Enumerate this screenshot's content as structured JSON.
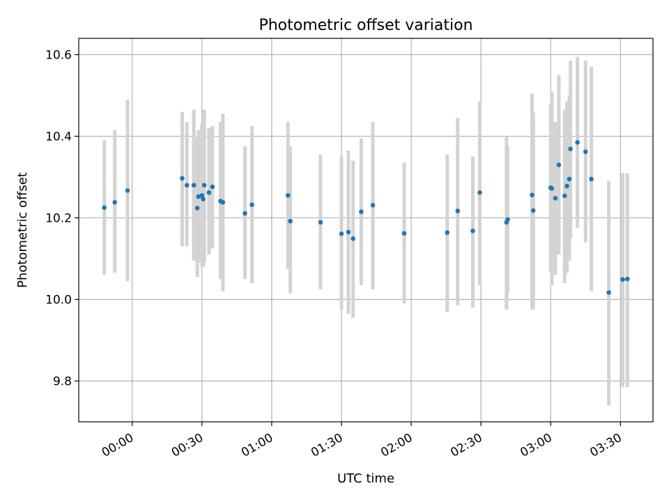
{
  "chart_data": {
    "type": "scatter",
    "title": "Photometric offset variation",
    "xlabel": "UTC time",
    "ylabel": "Photometric offset",
    "x_unit": "minutes",
    "xlim": [
      -23,
      224
    ],
    "ylim": [
      9.7,
      10.64
    ],
    "grid": true,
    "x_ticks": [
      0,
      30,
      60,
      90,
      120,
      150,
      180,
      210
    ],
    "x_tick_labels": [
      "00:00",
      "00:30",
      "01:00",
      "01:30",
      "02:00",
      "02:30",
      "03:00",
      "03:30"
    ],
    "y_ticks": [
      9.8,
      10.0,
      10.2,
      10.4,
      10.6
    ],
    "y_tick_labels": [
      "9.8",
      "10.0",
      "10.2",
      "10.4",
      "10.6"
    ],
    "colors": {
      "point": "#1f77b4",
      "errorbar": "#d3d3d3",
      "grid": "#b0b0b0"
    },
    "series": [
      {
        "x": [
          -12,
          -7.5,
          -2,
          21.5,
          23.5,
          26.5,
          28,
          28.5,
          30,
          30.5,
          31,
          33,
          34.5,
          38,
          39,
          48.5,
          51.5,
          67,
          68,
          81,
          90,
          93,
          95,
          98.5,
          103.5,
          117,
          135.5,
          140,
          146.5,
          149.5,
          161,
          161.5,
          172,
          172.5,
          180,
          180.5,
          182,
          183.5,
          186,
          187,
          188,
          188.5,
          191.5,
          195,
          197.5,
          205,
          211,
          213
        ],
        "y": [
          10.225,
          10.238,
          10.267,
          10.297,
          10.28,
          10.28,
          10.224,
          10.252,
          10.255,
          10.246,
          10.28,
          10.262,
          10.276,
          10.241,
          10.238,
          10.211,
          10.232,
          10.255,
          10.192,
          10.189,
          10.161,
          10.165,
          10.149,
          10.215,
          10.231,
          10.162,
          10.164,
          10.217,
          10.168,
          10.262,
          10.189,
          10.196,
          10.256,
          10.218,
          10.274,
          10.272,
          10.248,
          10.33,
          10.254,
          10.278,
          10.295,
          10.369,
          10.385,
          10.362,
          10.295,
          10.017,
          10.049,
          10.05
        ],
        "y_low": [
          10.06,
          10.065,
          10.045,
          10.13,
          10.13,
          10.095,
          10.055,
          10.09,
          10.08,
          10.08,
          10.09,
          10.11,
          10.125,
          10.05,
          10.02,
          10.05,
          10.04,
          10.075,
          10.015,
          10.025,
          9.975,
          9.965,
          9.955,
          10.035,
          10.025,
          9.99,
          9.97,
          9.985,
          9.98,
          10.035,
          9.975,
          10.015,
          9.975,
          9.975,
          10.065,
          10.035,
          10.06,
          10.11,
          10.04,
          10.065,
          10.095,
          10.15,
          10.175,
          10.14,
          10.02,
          9.74,
          9.785,
          9.785
        ],
        "y_high": [
          10.39,
          10.415,
          10.49,
          10.46,
          10.435,
          10.465,
          10.395,
          10.415,
          10.43,
          10.41,
          10.465,
          10.42,
          10.425,
          10.435,
          10.455,
          10.375,
          10.425,
          10.435,
          10.375,
          10.355,
          10.35,
          10.365,
          10.34,
          10.395,
          10.435,
          10.335,
          10.355,
          10.445,
          10.35,
          10.485,
          10.4,
          10.375,
          10.505,
          10.46,
          10.48,
          10.51,
          10.435,
          10.55,
          10.465,
          10.485,
          10.5,
          10.585,
          10.595,
          10.585,
          10.57,
          10.29,
          10.31,
          10.31
        ]
      }
    ]
  }
}
